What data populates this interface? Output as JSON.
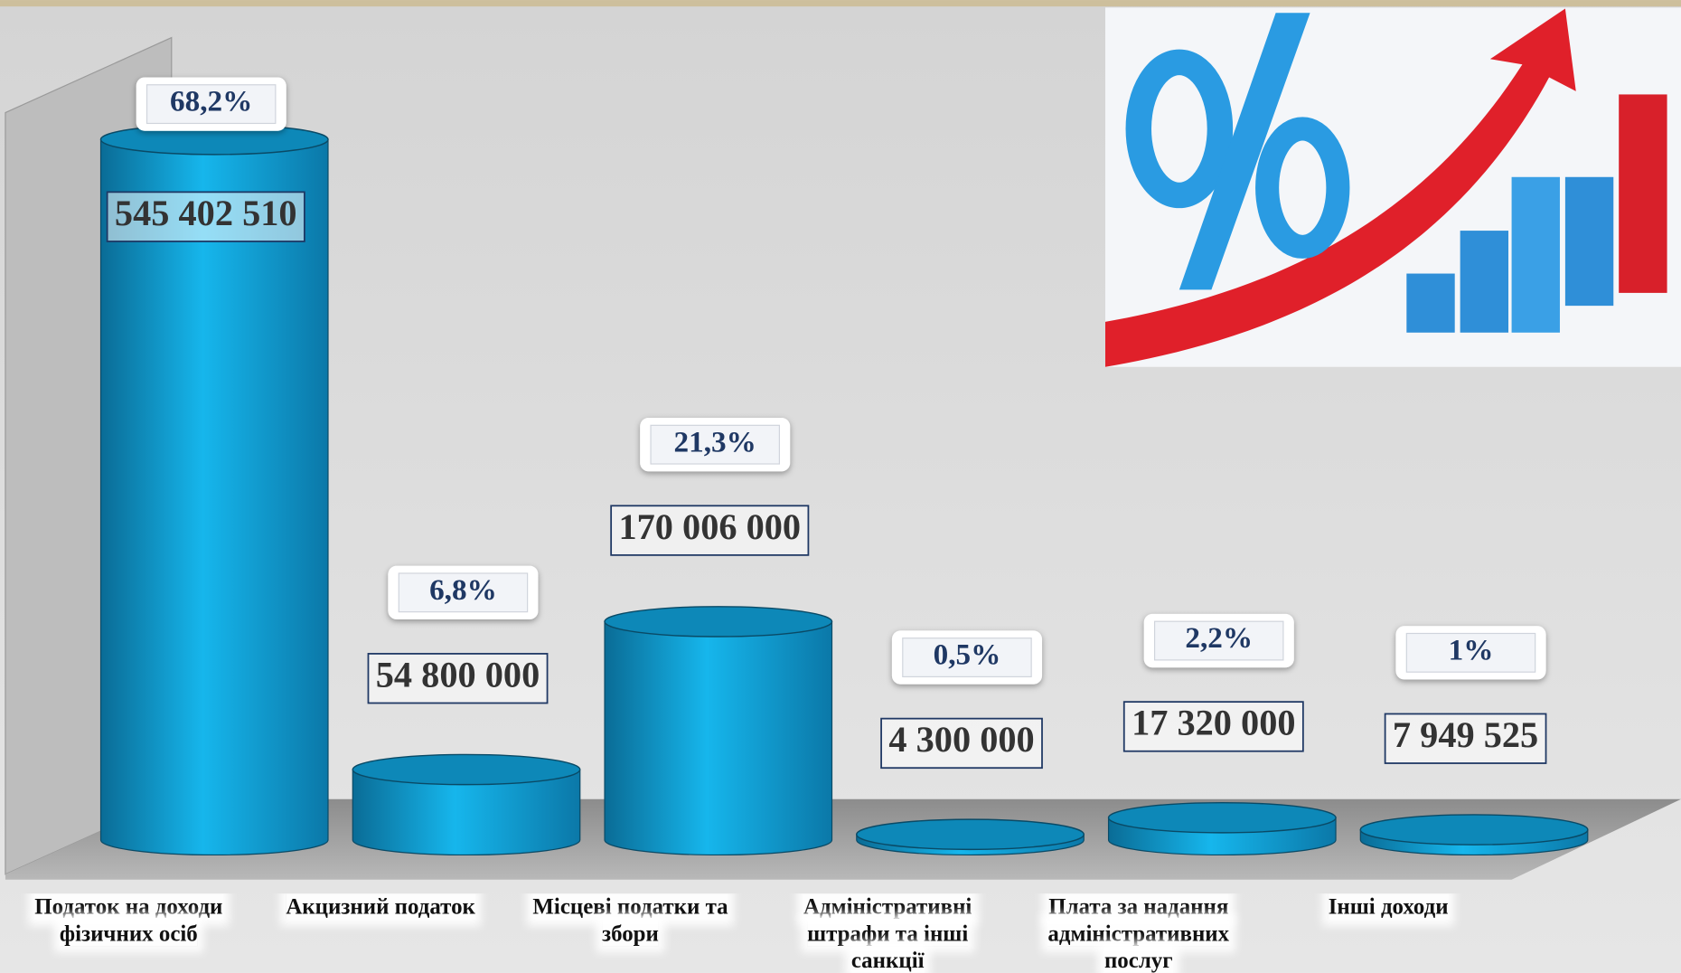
{
  "chart_data": {
    "type": "bar",
    "categories": [
      "Податок на доходи фізичних осіб",
      "Акцизний податок",
      "Місцеві податки та збори",
      "Адміністративні штрафи та інші санкції",
      "Плата за надання адміністративних послуг",
      "Інші доходи"
    ],
    "values": [
      545402510,
      54800000,
      170006000,
      4300000,
      17320000,
      7949525
    ],
    "value_labels": [
      "545 402 510",
      "54 800 000",
      "170 006 000",
      "4 300 000",
      "17 320 000",
      "7 949 525"
    ],
    "percent_values": [
      68.2,
      6.8,
      21.3,
      0.5,
      2.2,
      1
    ],
    "percent_labels": [
      "68,2%",
      "6,8%",
      "21,3%",
      "0,5%",
      "2,2%",
      "1%"
    ],
    "color": "#12a6dc"
  }
}
